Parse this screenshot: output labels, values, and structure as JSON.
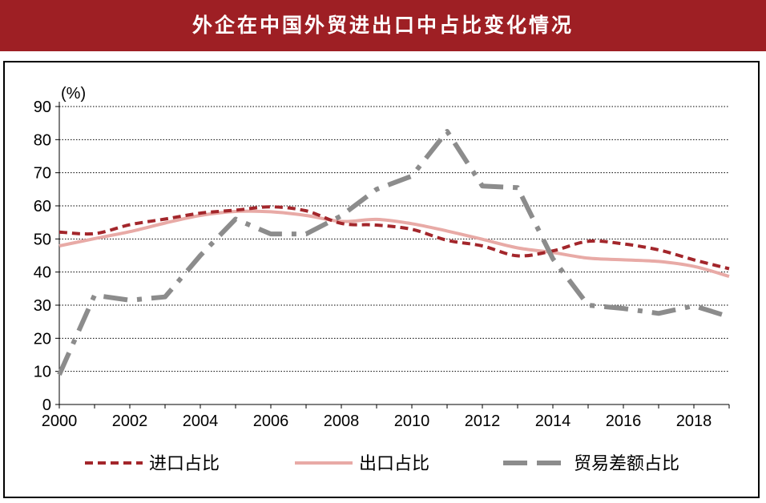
{
  "header": {
    "title": "外企在中国外贸进出口中占比变化情况"
  },
  "chart_data": {
    "type": "line",
    "title": "外企在中国外贸进出口中占比变化情况",
    "ylabel": "(%)",
    "xlabel": "",
    "ylim": [
      0,
      90
    ],
    "yticks": [
      0,
      10,
      20,
      30,
      40,
      50,
      60,
      70,
      80,
      90
    ],
    "xlim": [
      2000,
      2019
    ],
    "xticks": [
      2000,
      2002,
      2004,
      2006,
      2008,
      2010,
      2012,
      2014,
      2016,
      2018
    ],
    "grid": "horizontal dotted",
    "legend_position": "bottom",
    "x": [
      2000,
      2001,
      2002,
      2003,
      2004,
      2005,
      2006,
      2007,
      2008,
      2009,
      2010,
      2011,
      2012,
      2013,
      2014,
      2015,
      2016,
      2017,
      2018,
      2019
    ],
    "series": [
      {
        "name": "进口占比",
        "color": "#a3262b",
        "style": "dashed",
        "values": [
          52.1,
          51.6,
          54.3,
          56.0,
          57.8,
          58.7,
          59.7,
          58.5,
          54.7,
          54.2,
          52.9,
          49.6,
          47.9,
          44.9,
          46.4,
          49.3,
          48.5,
          46.7,
          43.7,
          41.0
        ]
      },
      {
        "name": "出口占比",
        "color": "#e8aaa6",
        "style": "solid",
        "values": [
          47.9,
          50.1,
          52.2,
          54.8,
          57.1,
          58.3,
          58.2,
          57.1,
          55.3,
          55.9,
          54.6,
          52.4,
          49.9,
          47.3,
          45.9,
          44.2,
          43.7,
          43.2,
          41.7,
          38.7
        ]
      },
      {
        "name": "贸易差额占比",
        "color": "#8c8c8c",
        "style": "dashdot",
        "values": [
          9.0,
          33.0,
          31.5,
          32.5,
          45.0,
          56.0,
          51.5,
          51.5,
          57.0,
          65.0,
          69.0,
          82.5,
          66.0,
          65.5,
          44.0,
          30.0,
          29.0,
          27.5,
          29.8,
          26.5
        ]
      }
    ]
  }
}
